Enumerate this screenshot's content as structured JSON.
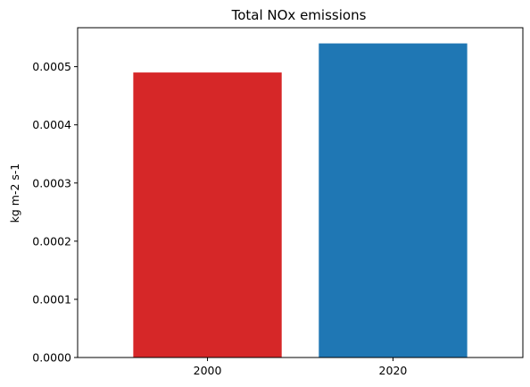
{
  "chart_data": {
    "type": "bar",
    "title": "Total NOx emissions",
    "xlabel": "",
    "ylabel": "kg m-2 s-1",
    "categories": [
      "2000",
      "2020"
    ],
    "values": [
      0.00049,
      0.00054
    ],
    "colors": [
      "#d62728",
      "#1f77b4"
    ],
    "ylim": [
      0,
      0.000567
    ],
    "yticks": [
      0.0,
      0.0001,
      0.0002,
      0.0003,
      0.0004,
      0.0005
    ],
    "ytick_labels": [
      "0.0000",
      "0.0001",
      "0.0002",
      "0.0003",
      "0.0004",
      "0.0005"
    ],
    "grid": false,
    "legend": "none"
  }
}
